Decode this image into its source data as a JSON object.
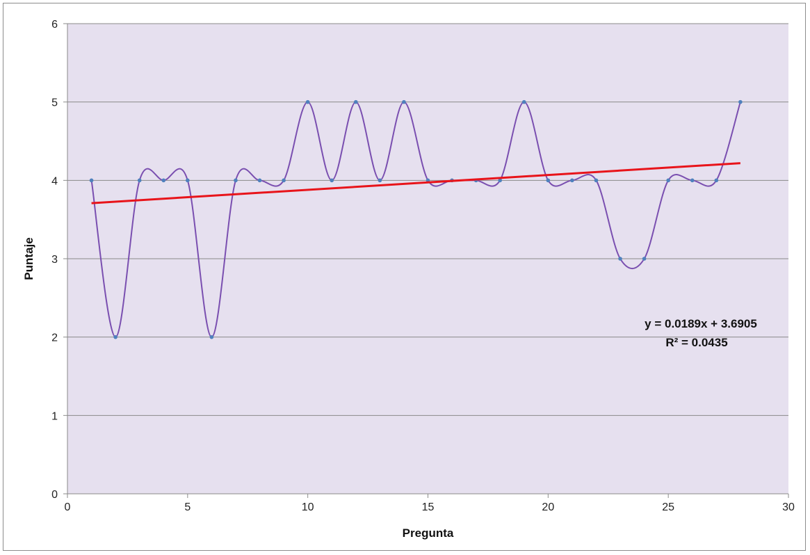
{
  "chart_data": {
    "type": "scatter",
    "title": "",
    "xlabel": "Pregunta",
    "ylabel": "Puntaje",
    "xlim": [
      0,
      30
    ],
    "ylim": [
      0,
      6
    ],
    "x_ticks": [
      "0",
      "5",
      "10",
      "15",
      "20",
      "25",
      "30"
    ],
    "y_ticks": [
      "0",
      "1",
      "2",
      "3",
      "4",
      "5",
      "6"
    ],
    "grid": "horizontal",
    "plot_background": "#e6e0ef",
    "series": [
      {
        "style": "smoothed line with markers",
        "color": "#7a4fb0",
        "marker_color": "#4f81bd",
        "x": [
          1,
          2,
          3,
          4,
          5,
          6,
          7,
          8,
          9,
          10,
          11,
          12,
          13,
          14,
          15,
          16,
          17,
          18,
          19,
          20,
          21,
          22,
          23,
          24,
          25,
          26,
          27,
          28
        ],
        "y": [
          4,
          2,
          4,
          4,
          4,
          2,
          4,
          4,
          4,
          5,
          4,
          5,
          4,
          5,
          4,
          4,
          4,
          4,
          5,
          4,
          4,
          4,
          3,
          3,
          4,
          4,
          4,
          5
        ]
      }
    ],
    "trendline": {
      "type": "linear",
      "color": "#e8141a",
      "slope": 0.0189,
      "intercept": 3.6905,
      "x_range": [
        1,
        28
      ]
    },
    "annotations": {
      "equation": "y = 0.0189x + 3.6905",
      "r_squared": "R² = 0.0435"
    }
  }
}
